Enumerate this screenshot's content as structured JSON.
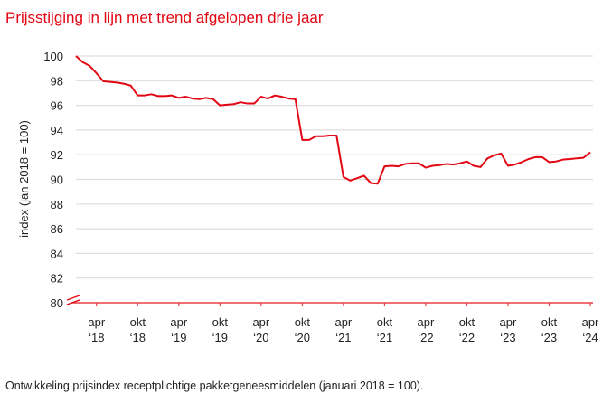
{
  "chart_data": {
    "type": "line",
    "title": "Prijsstijging in lijn met trend afgelopen drie jaar",
    "caption": "Ontwikkeling prijsindex receptplichtige pakketgeneesmiddelen (januari 2018 = 100).",
    "xlabel": "",
    "ylabel": "index (jan 2018 = 100)",
    "ylim": [
      80,
      100
    ],
    "yticks": [
      "80",
      "82",
      "84",
      "86",
      "88",
      "90",
      "92",
      "94",
      "96",
      "98",
      "100"
    ],
    "y_axis_break": true,
    "grid": true,
    "x_start": "2018-01",
    "x_end": "2024-04",
    "xticks": [
      {
        "month": "2018-04",
        "line1": "apr",
        "line2": "‘18"
      },
      {
        "month": "2018-10",
        "line1": "okt",
        "line2": "‘18"
      },
      {
        "month": "2019-04",
        "line1": "apr",
        "line2": "‘19"
      },
      {
        "month": "2019-10",
        "line1": "okt",
        "line2": "‘19"
      },
      {
        "month": "2020-04",
        "line1": "apr",
        "line2": "‘20"
      },
      {
        "month": "2020-10",
        "line1": "okt",
        "line2": "‘20"
      },
      {
        "month": "2021-04",
        "line1": "apr",
        "line2": "‘21"
      },
      {
        "month": "2021-10",
        "line1": "okt",
        "line2": "‘21"
      },
      {
        "month": "2022-04",
        "line1": "apr",
        "line2": "‘22"
      },
      {
        "month": "2022-10",
        "line1": "okt",
        "line2": "‘22"
      },
      {
        "month": "2023-04",
        "line1": "apr",
        "line2": "‘23"
      },
      {
        "month": "2023-10",
        "line1": "okt",
        "line2": "‘23"
      },
      {
        "month": "2024-04",
        "line1": "apr",
        "line2": "‘24"
      }
    ],
    "series": [
      {
        "color": "#e30613",
        "values": [
          100,
          99.5,
          99.2,
          98.6,
          97.95,
          97.9,
          97.85,
          97.75,
          97.6,
          96.8,
          96.8,
          96.9,
          96.75,
          96.75,
          96.8,
          96.6,
          96.7,
          96.55,
          96.5,
          96.6,
          96.5,
          96.0,
          96.05,
          96.1,
          96.25,
          96.15,
          96.15,
          96.7,
          96.55,
          96.8,
          96.7,
          96.55,
          96.5,
          93.2,
          93.2,
          93.5,
          93.5,
          93.55,
          93.55,
          90.2,
          89.9,
          90.1,
          90.3,
          89.7,
          89.65,
          91.05,
          91.1,
          91.05,
          91.25,
          91.3,
          91.3,
          90.95,
          91.1,
          91.15,
          91.25,
          91.2,
          91.3,
          91.45,
          91.1,
          91.0,
          91.7,
          91.95,
          92.1,
          91.1,
          91.2,
          91.4,
          91.65,
          91.8,
          91.8,
          91.4,
          91.45,
          91.6,
          91.65,
          91.7,
          91.75,
          92.2
        ]
      }
    ],
    "colors": {
      "accent": "#e30613",
      "grid": "#dddddd",
      "axis": "#e8404a"
    }
  }
}
